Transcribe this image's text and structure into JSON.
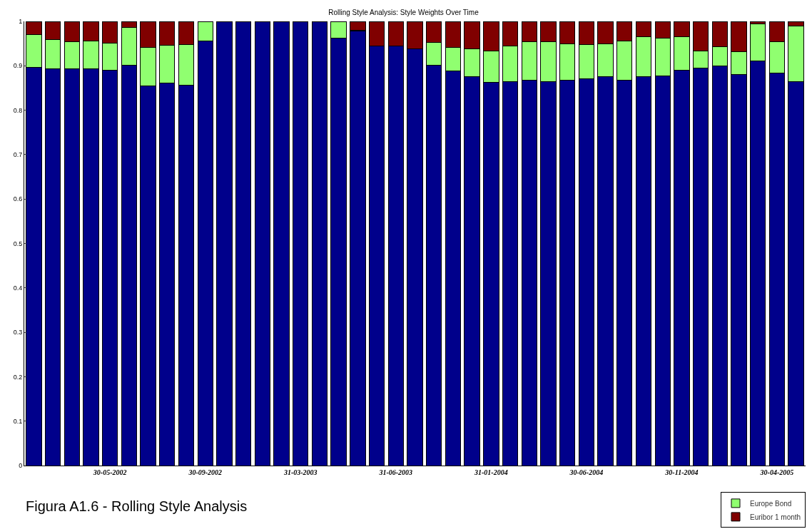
{
  "chart_data": {
    "type": "bar",
    "stacked": true,
    "title": "Rolling Style Analysis: Style Weights Over Time",
    "categories": [
      null,
      null,
      null,
      null,
      "30-05-2002",
      null,
      null,
      null,
      null,
      "30-09-2002",
      null,
      null,
      null,
      null,
      "31-03-2003",
      null,
      null,
      null,
      null,
      "31-06-2003",
      null,
      null,
      null,
      null,
      "31-01-2004",
      null,
      null,
      null,
      null,
      "30-06-2004",
      null,
      null,
      null,
      null,
      "30-11-2004",
      null,
      null,
      null,
      null,
      "30-04-2005",
      null
    ],
    "series": [
      {
        "color": "#00008b",
        "values": [
          0.897,
          0.893,
          0.893,
          0.893,
          0.89,
          0.901,
          0.854,
          0.861,
          0.857,
          0.956,
          1,
          1,
          1,
          1,
          1,
          1,
          0.963,
          0.978,
          0.944,
          0.944,
          0.939,
          0.901,
          0.888,
          0.876,
          0.862,
          0.865,
          0.868,
          0.865,
          0.867,
          0.87,
          0.876,
          0.868,
          0.876,
          0.878,
          0.89,
          0.895,
          0.899,
          0.88,
          0.911,
          0.884,
          0.865
        ]
      },
      {
        "name": "Europe Bond",
        "color": "#90ff70",
        "values": [
          0.073,
          0.066,
          0.061,
          0.063,
          0.061,
          0.086,
          0.087,
          0.085,
          0.091,
          0.044,
          0,
          0,
          0,
          0,
          0,
          0,
          0.037,
          0.002,
          0,
          0,
          0,
          0.051,
          0.053,
          0.063,
          0.072,
          0.079,
          0.086,
          0.089,
          0.082,
          0.078,
          0.073,
          0.088,
          0.089,
          0.084,
          0.076,
          0.039,
          0.044,
          0.051,
          0.084,
          0.07,
          0.125
        ]
      },
      {
        "name": "Euribor 1 month",
        "color": "#800000",
        "values": [
          0.03,
          0.041,
          0.046,
          0.044,
          0.049,
          0.013,
          0.059,
          0.054,
          0.052,
          0,
          0,
          0,
          0,
          0,
          0,
          0,
          0,
          0.02,
          0.056,
          0.056,
          0.061,
          0.048,
          0.059,
          0.061,
          0.066,
          0.056,
          0.046,
          0.046,
          0.051,
          0.052,
          0.051,
          0.044,
          0.035,
          0.038,
          0.034,
          0.066,
          0.057,
          0.069,
          0.005,
          0.046,
          0.01
        ]
      }
    ],
    "ylim": [
      0,
      1
    ],
    "yticks": [
      0,
      0.1,
      0.2,
      0.3,
      0.4,
      0.5,
      0.6,
      0.7,
      0.8,
      0.9,
      1
    ],
    "legend": "bottom right",
    "annotations": [
      "Figura A1.6 - Rolling Style Analysis"
    ]
  }
}
